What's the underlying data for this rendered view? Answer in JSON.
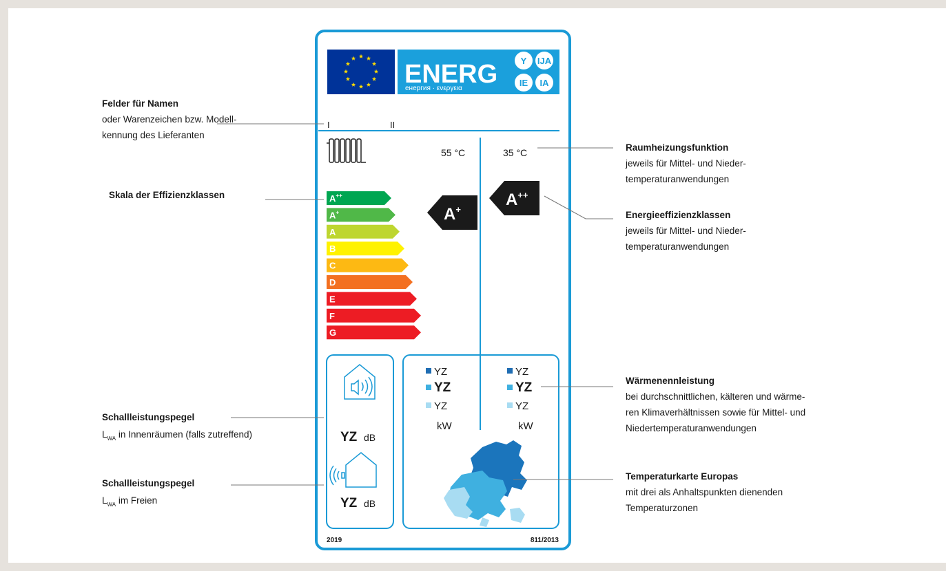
{
  "label": {
    "logo": {
      "title": "ENERG",
      "subtitle": "енергия · ενεργεια",
      "badges": [
        "Y",
        "IJA",
        "IE",
        "IA"
      ]
    },
    "fields": [
      "I",
      "II"
    ],
    "temperatures": [
      "55 °C",
      "35 °C"
    ],
    "scale": [
      {
        "letter": "A",
        "sup": "++"
      },
      {
        "letter": "A",
        "sup": "+"
      },
      {
        "letter": "A"
      },
      {
        "letter": "B"
      },
      {
        "letter": "C"
      },
      {
        "letter": "D"
      },
      {
        "letter": "E"
      },
      {
        "letter": "F"
      },
      {
        "letter": "G"
      }
    ],
    "ratings": [
      {
        "letter": "A",
        "sup": "+"
      },
      {
        "letter": "A",
        "sup": "++"
      }
    ],
    "sound": [
      {
        "value": "YZ",
        "unit": "dB"
      },
      {
        "value": "YZ",
        "unit": "dB"
      }
    ],
    "output": [
      [
        "YZ",
        "YZ",
        "YZ",
        "kW"
      ],
      [
        "YZ",
        "YZ",
        "YZ",
        "kW"
      ]
    ],
    "footer": {
      "year": "2019",
      "regulation": "811/2013"
    }
  },
  "annotations_left": [
    {
      "title": "Felder für Namen",
      "lines": [
        "oder Warenzeichen bzw. Modell-",
        "kennung des Lieferanten"
      ]
    },
    {
      "title": "Skala der Effizienzklassen"
    },
    {
      "title": "Schallleistungspegel",
      "symbol": "L",
      "subscript": "WA",
      "text": " in Innenräumen (falls zutreffend)"
    },
    {
      "title": "Schallleistungspegel",
      "symbol": "L",
      "subscript": "WA",
      "text": " im Freien"
    }
  ],
  "annotations_right": [
    {
      "title": "Raumheizungsfunktion",
      "lines": [
        "jeweils für Mittel- und Nieder-",
        "temperaturanwendungen"
      ]
    },
    {
      "title": "Energieeffizienzklassen",
      "lines": [
        "jeweils für Mittel- und Nieder-",
        "temperaturanwendungen"
      ]
    },
    {
      "title": "Wärmenennleistung",
      "lines": [
        "bei durchschnittlichen, kälteren und wärme-",
        "ren Klimaverhältnissen sowie für Mittel- und",
        "Niedertemperaturanwendungen"
      ]
    },
    {
      "title": "Temperaturkarte Europas",
      "lines": [
        "mit drei als Anhaltspunkten dienenden",
        "Temperaturzonen"
      ]
    }
  ]
}
